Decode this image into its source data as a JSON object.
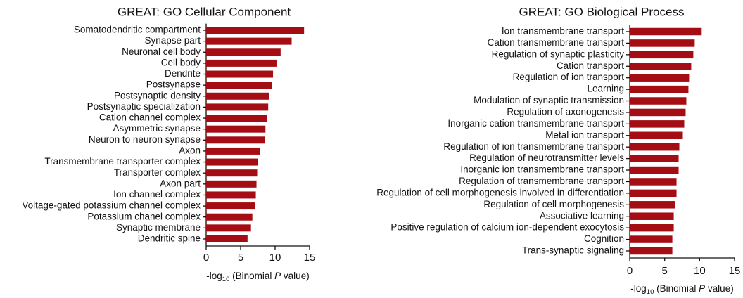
{
  "chart_data": [
    {
      "type": "bar",
      "orientation": "horizontal",
      "title": "GREAT: GO Cellular Component",
      "x_label": [
        "-log",
        "10",
        " (Binomial ",
        "P",
        " value)"
      ],
      "categories": [
        "Somatodendritic compartment",
        "Synapse part",
        "Neuronal cell body",
        "Cell body",
        "Dendrite",
        "Postsynapse",
        "Postsynaptic density",
        "Postsynaptic specialization",
        "Cation channel complex",
        "Asymmetric synapse",
        "Neuron to neuron synapse",
        "Axon",
        "Transmembrane transporter complex",
        "Transporter complex",
        "Axon part",
        "Ion channel complex",
        "Voltage-gated potassium channel complex",
        "Potassium chanel complex",
        "Synaptic membrane",
        "Dendritic spine"
      ],
      "values": [
        14.2,
        12.4,
        10.8,
        10.2,
        9.7,
        9.5,
        9.1,
        9.0,
        8.8,
        8.6,
        8.5,
        7.8,
        7.5,
        7.4,
        7.3,
        7.2,
        7.1,
        6.7,
        6.5,
        6.0
      ],
      "color": "#a50d14",
      "xlim": [
        0,
        15
      ],
      "xticks": [
        0,
        5,
        10,
        15
      ]
    },
    {
      "type": "bar",
      "orientation": "horizontal",
      "title": "GREAT: GO Biological Process",
      "x_label": [
        "-log",
        "10",
        " (Binomial ",
        "P",
        " value)"
      ],
      "categories": [
        "Ion transmembrane transport",
        "Cation transmembrane transport",
        "Regulation of synaptic plasticity",
        "Cation transport",
        "Regulation of ion transport",
        "Learning",
        "Modulation of synaptic transmission",
        "Regulation of axonogenesis",
        "Inorganic cation transmembrane transport",
        "Metal ion transport",
        "Regulation of ion transmembrane transport",
        "Regulation of neurotransmitter levels",
        "Inorganic ion transmembrane transport",
        "Regulation of transmembrane transport",
        "Regulation of cell morphogenesis involved in differentiation",
        "Regulation of cell morphogenesis",
        "Associative learning",
        "Positive regulation of calcium ion-dependent exocytosis",
        "Cognition",
        "Trans-synaptic signaling"
      ],
      "values": [
        10.3,
        9.3,
        9.1,
        8.8,
        8.5,
        8.4,
        8.1,
        8.0,
        7.8,
        7.6,
        7.1,
        7.0,
        7.0,
        6.7,
        6.7,
        6.5,
        6.3,
        6.3,
        6.1,
        6.1
      ],
      "color": "#a50d14",
      "xlim": [
        0,
        15
      ],
      "xticks": [
        0,
        5,
        10,
        15
      ]
    }
  ]
}
